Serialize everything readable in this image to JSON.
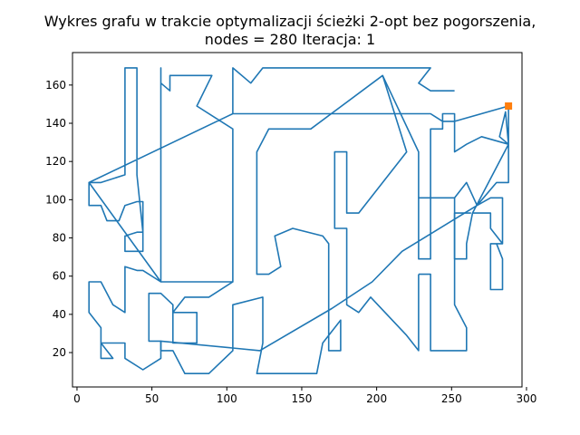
{
  "chart_data": {
    "type": "line",
    "title_lines": [
      "Wykres grafu w trakcie optymalizacji ścieżki 2-opt bez pogorszenia,",
      "nodes = 280 Iteracja: 1"
    ],
    "xlabel": "",
    "ylabel": "",
    "xlim": [
      -3,
      297
    ],
    "ylim": [
      2,
      177
    ],
    "xticks": [
      0,
      50,
      100,
      150,
      200,
      250,
      300
    ],
    "yticks": [
      20,
      40,
      60,
      80,
      100,
      120,
      140,
      160
    ],
    "grid": false,
    "legend": false,
    "series": [
      {
        "color": "#1f77b4",
        "points": [
          [
            288,
            149
          ],
          [
            288,
            129
          ],
          [
            282,
            133
          ],
          [
            286,
            146
          ],
          [
            288,
            129
          ],
          [
            288,
            109
          ],
          [
            280,
            109
          ],
          [
            267,
            97
          ],
          [
            260,
            109
          ],
          [
            252,
            101
          ],
          [
            236,
            101
          ],
          [
            236,
            137
          ],
          [
            244,
            137
          ],
          [
            244,
            145
          ],
          [
            252,
            145
          ],
          [
            252,
            125
          ],
          [
            260,
            129
          ],
          [
            270,
            133
          ],
          [
            288,
            129
          ],
          [
            264,
            93
          ],
          [
            264,
            93
          ],
          [
            276,
            93
          ],
          [
            276,
            85
          ],
          [
            284,
            77
          ],
          [
            276,
            77
          ],
          [
            276,
            53
          ],
          [
            284,
            53
          ],
          [
            284,
            69
          ],
          [
            280,
            77
          ],
          [
            284,
            77
          ],
          [
            284,
            101
          ],
          [
            276,
            101
          ],
          [
            267,
            97
          ],
          [
            217,
            73
          ],
          [
            197,
            57
          ],
          [
            170,
            43
          ],
          [
            122,
            21
          ],
          [
            56,
            26
          ],
          [
            56,
            17
          ],
          [
            44,
            11
          ],
          [
            32,
            17
          ],
          [
            32,
            25
          ],
          [
            16,
            25
          ],
          [
            16,
            17
          ],
          [
            24,
            17
          ],
          [
            16,
            25
          ],
          [
            16,
            33
          ],
          [
            8,
            41
          ],
          [
            8,
            57
          ],
          [
            16,
            57
          ],
          [
            24,
            45
          ],
          [
            32,
            41
          ],
          [
            32,
            65
          ],
          [
            40,
            63
          ],
          [
            44,
            63
          ],
          [
            56,
            57
          ],
          [
            56,
            169
          ],
          [
            56,
            161
          ],
          [
            62,
            157
          ],
          [
            62,
            165
          ],
          [
            90,
            165
          ],
          [
            80,
            149
          ],
          [
            104,
            137
          ],
          [
            104,
            57
          ],
          [
            56,
            57
          ],
          [
            8,
            109
          ],
          [
            16,
            109
          ],
          [
            32,
            113
          ],
          [
            32,
            169
          ],
          [
            40,
            169
          ],
          [
            40,
            113
          ],
          [
            44,
            83
          ],
          [
            44,
            73
          ],
          [
            32,
            73
          ],
          [
            32,
            81
          ],
          [
            40,
            83
          ],
          [
            44,
            83
          ],
          [
            44,
            99
          ],
          [
            40,
            99
          ],
          [
            32,
            97
          ],
          [
            28,
            89
          ],
          [
            20,
            89
          ],
          [
            16,
            97
          ],
          [
            8,
            97
          ],
          [
            8,
            109
          ],
          [
            104,
            145
          ],
          [
            228,
            145
          ],
          [
            236,
            145
          ],
          [
            244,
            141
          ],
          [
            252,
            141
          ],
          [
            288,
            149
          ]
        ]
      },
      {
        "color": "#1f77b4",
        "points": [
          [
            263,
            93
          ],
          [
            252,
            93
          ],
          [
            252,
            69
          ],
          [
            260,
            69
          ],
          [
            260,
            77
          ],
          [
            264,
            93
          ]
        ]
      },
      {
        "color": "#1f77b4",
        "points": [
          [
            104,
            145
          ],
          [
            104,
            169
          ],
          [
            116,
            161
          ],
          [
            124,
            169
          ],
          [
            236,
            169
          ],
          [
            228,
            161
          ],
          [
            236,
            157
          ],
          [
            252,
            157
          ]
        ]
      },
      {
        "color": "#1f77b4",
        "points": [
          [
            252,
            101
          ],
          [
            252,
            93
          ]
        ]
      },
      {
        "color": "#1f77b4",
        "points": [
          [
            236,
            101
          ],
          [
            228,
            101
          ],
          [
            228,
            69
          ],
          [
            236,
            69
          ],
          [
            236,
            101
          ]
        ]
      },
      {
        "color": "#1f77b4",
        "points": [
          [
            228,
            101
          ],
          [
            228,
            125
          ],
          [
            204,
            165
          ],
          [
            156,
            137
          ],
          [
            128,
            137
          ],
          [
            120,
            125
          ],
          [
            120,
            61
          ],
          [
            128,
            61
          ],
          [
            136,
            65
          ],
          [
            132,
            81
          ],
          [
            144,
            85
          ],
          [
            164,
            81
          ],
          [
            168,
            77
          ],
          [
            168,
            21
          ],
          [
            176,
            21
          ],
          [
            176,
            37
          ],
          [
            164,
            25
          ],
          [
            160,
            9
          ],
          [
            120,
            9
          ],
          [
            124,
            25
          ],
          [
            124,
            49
          ],
          [
            104,
            45
          ],
          [
            104,
            21
          ],
          [
            88,
            9
          ],
          [
            72,
            9
          ],
          [
            64,
            21
          ],
          [
            56,
            21
          ],
          [
            56,
            26
          ],
          [
            48,
            26
          ],
          [
            48,
            51
          ],
          [
            56,
            51
          ],
          [
            64,
            45
          ],
          [
            64,
            41
          ],
          [
            80,
            41
          ],
          [
            80,
            25
          ],
          [
            64,
            25
          ],
          [
            64,
            41
          ],
          [
            72,
            49
          ],
          [
            88,
            49
          ],
          [
            104,
            57
          ]
        ]
      },
      {
        "color": "#1f77b4",
        "points": [
          [
            228,
            61
          ],
          [
            236,
            61
          ],
          [
            236,
            21
          ],
          [
            252,
            21
          ],
          [
            260,
            21
          ],
          [
            260,
            33
          ],
          [
            252,
            45
          ],
          [
            252,
            93
          ]
        ]
      },
      {
        "color": "#1f77b4",
        "points": [
          [
            228,
            61
          ],
          [
            228,
            21
          ],
          [
            220,
            29
          ],
          [
            196,
            49
          ],
          [
            188,
            41
          ],
          [
            180,
            45
          ],
          [
            180,
            85
          ],
          [
            172,
            85
          ],
          [
            172,
            125
          ],
          [
            180,
            125
          ],
          [
            180,
            93
          ],
          [
            188,
            93
          ],
          [
            220,
            125
          ],
          [
            204,
            165
          ]
        ]
      }
    ],
    "markers": [
      {
        "x": 288,
        "y": 149,
        "color": "#ff7f0e",
        "shape": "square"
      }
    ]
  }
}
